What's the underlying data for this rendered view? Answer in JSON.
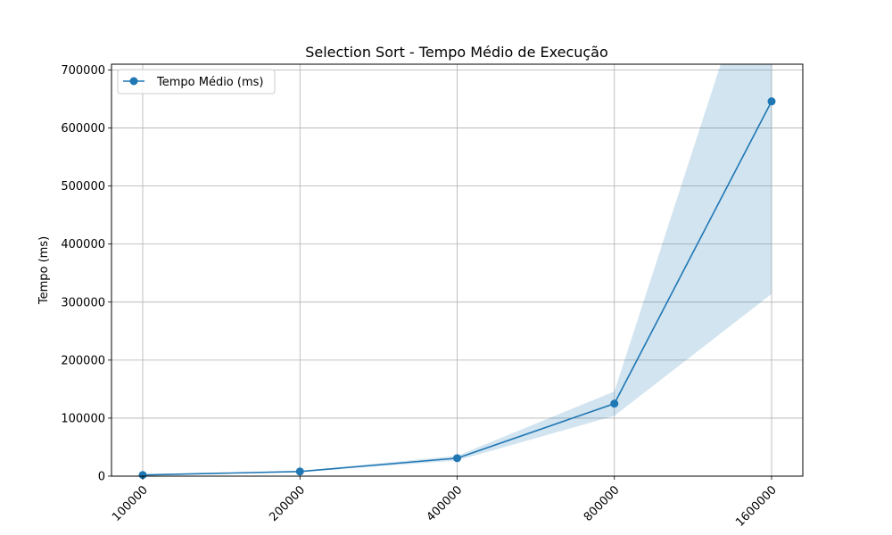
{
  "chart_data": {
    "type": "line",
    "title": "Selection Sort - Tempo Médio de Execução",
    "xlabel": "",
    "ylabel": "Tempo (ms)",
    "x": [
      "100000",
      "200000",
      "400000",
      "800000",
      "1600000"
    ],
    "ylim": [
      0,
      710000
    ],
    "yticks": [
      0,
      100000,
      200000,
      300000,
      400000,
      500000,
      600000,
      700000
    ],
    "grid": true,
    "legend_position": "top-left",
    "series": [
      {
        "name": "Tempo Médio (ms)",
        "color": "#1f77b4",
        "values": [
          2000,
          8000,
          31000,
          125000,
          646000
        ],
        "lower": [
          1500,
          7000,
          27000,
          104000,
          314000
        ],
        "upper": [
          2500,
          9000,
          35000,
          146000,
          980000
        ],
        "band_color": "#1f77b4"
      }
    ]
  }
}
